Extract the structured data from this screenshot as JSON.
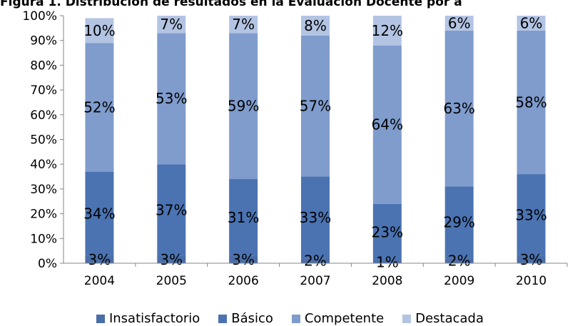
{
  "chart_data": {
    "type": "bar",
    "stacked": true,
    "title": "Figura 1. Distribución de resultados en la Evaluación Docente por a",
    "categories": [
      "2004",
      "2005",
      "2006",
      "2007",
      "2008",
      "2009",
      "2010"
    ],
    "ylim": [
      0,
      100
    ],
    "yticks": [
      "0%",
      "10%",
      "20%",
      "30%",
      "40%",
      "50%",
      "60%",
      "70%",
      "80%",
      "90%",
      "100%"
    ],
    "legend_position": "bottom",
    "series": [
      {
        "name": "Insatisfactorio",
        "color": "#4a6ea8",
        "values": [
          3,
          3,
          3,
          2,
          1,
          2,
          3
        ],
        "labels": [
          "3%",
          "3%",
          "3%",
          "2%",
          "1%",
          "2%",
          "3%"
        ]
      },
      {
        "name": "Básico",
        "color": "#4b73b2",
        "values": [
          34,
          37,
          31,
          33,
          23,
          29,
          33
        ],
        "labels": [
          "34%",
          "37%",
          "31%",
          "33%",
          "23%",
          "29%",
          "33%"
        ]
      },
      {
        "name": "Competente",
        "color": "#7f9ccd",
        "values": [
          52,
          53,
          59,
          57,
          64,
          63,
          58
        ],
        "labels": [
          "52%",
          "53%",
          "59%",
          "57%",
          "64%",
          "63%",
          "58%"
        ]
      },
      {
        "name": "Destacada",
        "color": "#b3c4e3",
        "values": [
          10,
          7,
          7,
          8,
          12,
          6,
          6
        ],
        "labels": [
          "10%",
          "7%",
          "7%",
          "8%",
          "12%",
          "6%",
          "6%"
        ]
      }
    ]
  }
}
